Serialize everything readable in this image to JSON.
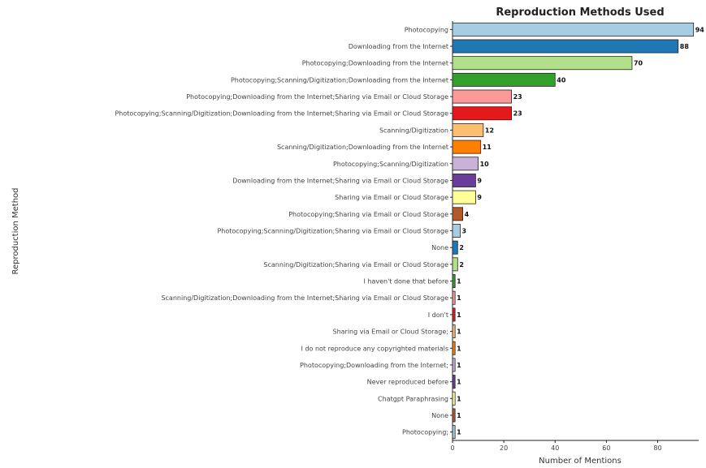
{
  "chart_data": {
    "type": "bar",
    "orientation": "horizontal",
    "title": "Reproduction Methods Used",
    "xlabel": "Number of Mentions",
    "ylabel": "Reproduction Method",
    "xlim": [
      0,
      96
    ],
    "xticks": [
      "0",
      "20",
      "40",
      "60",
      "80"
    ],
    "grid": false,
    "categories": [
      "Photocopying",
      "Downloading from the Internet",
      "Photocopying;Downloading from the Internet",
      "Photocopying;Scanning/Digitization;Downloading from the Internet",
      "Photocopying;Downloading from the Internet;Sharing via Email or Cloud Storage",
      "Photocopying;Scanning/Digitization;Downloading from the Internet;Sharing via Email or Cloud Storage",
      "Scanning/Digitization",
      "Scanning/Digitization;Downloading from the Internet",
      "Photocopying;Scanning/Digitization",
      "Downloading from the Internet;Sharing via Email or Cloud Storage",
      "Sharing via Email or Cloud Storage",
      "Photocopying;Sharing via Email or Cloud Storage",
      "Photocopying;Scanning/Digitization;Sharing via Email or Cloud Storage",
      "None",
      "Scanning/Digitization;Sharing via Email or Cloud Storage",
      "I haven't done that before",
      "Scanning/Digitization;Downloading from the Internet;Sharing via Email or Cloud Storage",
      "I don't",
      "Sharing via Email or Cloud Storage;",
      "I do not reproduce any copyrighted materials",
      "Photocopying;Downloading from the Internet;",
      "Never reproduced before",
      "Chatgpt Paraphrasing",
      "None",
      "Photocopying;"
    ],
    "values": [
      94,
      88,
      70,
      40,
      23,
      23,
      12,
      11,
      10,
      9,
      9,
      4,
      3,
      2,
      2,
      1,
      1,
      1,
      1,
      1,
      1,
      1,
      1,
      1,
      1
    ],
    "value_labels": [
      "94",
      "88",
      "70",
      "40",
      "23",
      "23",
      "12",
      "11",
      "10",
      "9",
      "9",
      "4",
      "3",
      "2",
      "2",
      "1",
      "1",
      "1",
      "1",
      "1",
      "1",
      "1",
      "1",
      "1",
      "1"
    ],
    "colors": [
      "#a6cee3",
      "#1f78b4",
      "#b2df8a",
      "#33a02c",
      "#fb9a99",
      "#e31a1c",
      "#fdbf6f",
      "#ff7f00",
      "#cab2d6",
      "#6a3d9a",
      "#ffff99",
      "#b15928",
      "#a6cee3",
      "#1f78b4",
      "#b2df8a",
      "#33a02c",
      "#fb9a99",
      "#e31a1c",
      "#fdbf6f",
      "#ff7f00",
      "#cab2d6",
      "#6a3d9a",
      "#ffff99",
      "#b15928",
      "#a6cee3"
    ]
  }
}
